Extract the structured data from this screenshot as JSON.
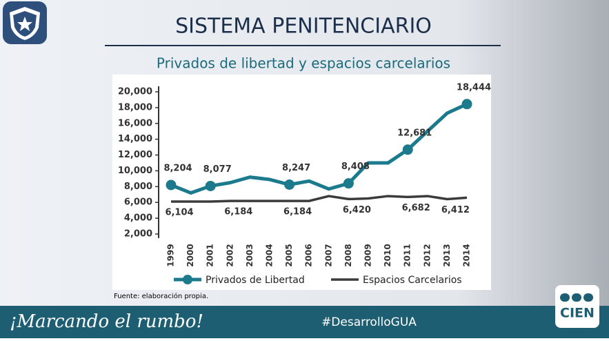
{
  "header": {
    "title": "SISTEMA PENITENCIARIO",
    "subtitle": "Privados de libertad y espacios carcelarios"
  },
  "chart_data": {
    "type": "line",
    "categories": [
      "1999",
      "2000",
      "2001",
      "2002",
      "2003",
      "2004",
      "2005",
      "2006",
      "2007",
      "2008",
      "2009",
      "2010",
      "2011",
      "2012",
      "2013",
      "2014"
    ],
    "series": [
      {
        "name": "Privados de Libertad",
        "color": "#1b7a8c",
        "values": [
          8204,
          7200,
          8077,
          8500,
          9200,
          8900,
          8247,
          8700,
          7700,
          8408,
          11000,
          11000,
          12681,
          15000,
          17300,
          18444
        ],
        "value_labels": [
          "8,204",
          null,
          "8,077",
          null,
          null,
          null,
          "8,247",
          null,
          null,
          "8,408",
          null,
          null,
          "12,681",
          null,
          null,
          "18,444"
        ],
        "markers": [
          true,
          false,
          true,
          false,
          false,
          false,
          true,
          false,
          false,
          true,
          false,
          false,
          true,
          false,
          false,
          true
        ]
      },
      {
        "name": "Espacios Carcelarios",
        "color": "#3b3b3b",
        "values": [
          6104,
          6104,
          6104,
          6184,
          6184,
          6184,
          6184,
          6184,
          6800,
          6420,
          6500,
          6800,
          6682,
          6800,
          6412,
          6600
        ],
        "value_labels": [
          "6,104",
          null,
          null,
          "6,184",
          null,
          null,
          "6,184",
          null,
          null,
          "6,420",
          null,
          null,
          "6,682",
          null,
          "6,412",
          null
        ]
      }
    ],
    "ylim": [
      2000,
      20000
    ],
    "yticks": [
      {
        "value": 2000,
        "label": "2,000"
      },
      {
        "value": 4000,
        "label": "4,000"
      },
      {
        "value": 6000,
        "label": "6,000"
      },
      {
        "value": 8000,
        "label": "8,000"
      },
      {
        "value": 10000,
        "label": "10,000"
      },
      {
        "value": 12000,
        "label": "12,000"
      },
      {
        "value": 14000,
        "label": "14,000"
      },
      {
        "value": 16000,
        "label": "16,000"
      },
      {
        "value": 18000,
        "label": "18,000"
      },
      {
        "value": 20000,
        "label": "20,000"
      }
    ],
    "legend": "bottom"
  },
  "source": "Fuente: elaboración propia.",
  "footer": {
    "slogan": "¡Marcando el rumbo!",
    "hashtag": "#DesarrolloGUA",
    "logo": "CIEN"
  }
}
